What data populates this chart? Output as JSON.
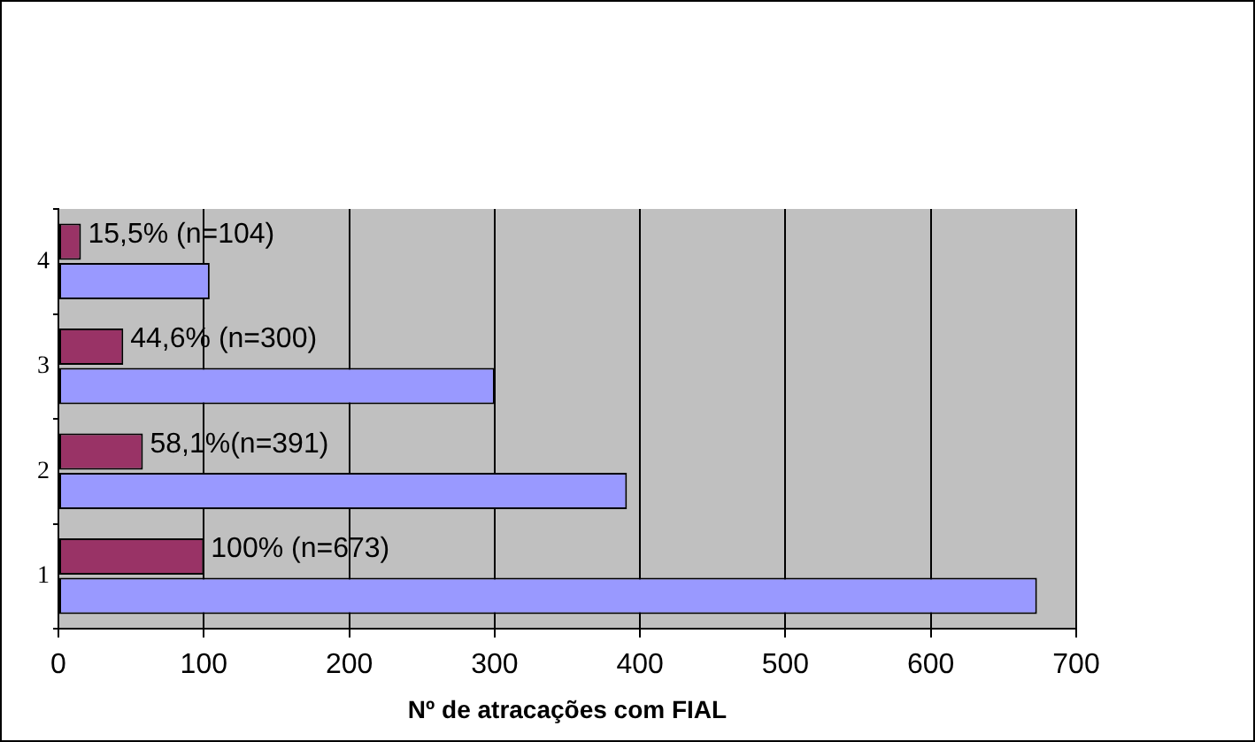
{
  "chart_data": {
    "type": "bar",
    "orientation": "horizontal",
    "categories": [
      "4",
      "3",
      "2",
      "1"
    ],
    "series": [
      {
        "color": "#993366",
        "values": [
          15.5,
          44.6,
          58.1,
          100
        ],
        "value_labels": [
          "15,5% (n=104)",
          "44,6% (n=300)",
          "58,1%(n=391)",
          "100% (n=673)"
        ]
      },
      {
        "color": "#9999ff",
        "values": [
          104,
          300,
          391,
          673
        ]
      }
    ],
    "xlim": [
      0,
      700
    ],
    "xticks": [
      0,
      100,
      200,
      300,
      400,
      500,
      600,
      700
    ],
    "xlabel": "Nº de atracações com FIAL",
    "grid": "x",
    "legend": false
  }
}
